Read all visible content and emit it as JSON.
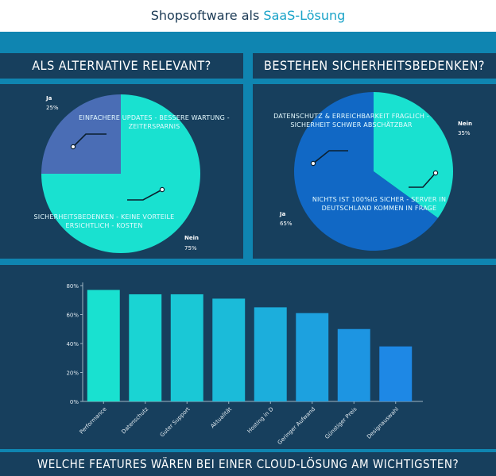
{
  "header": {
    "title_prefix": "Shopsoftware als ",
    "title_accent": "SaaS-Lösung"
  },
  "colors": {
    "background": "#173f5d",
    "frame": "#0f85b1",
    "teal": "#19e1d0",
    "slate": "#4a6db5",
    "blue": "#1168c5",
    "bar_top": "#19e1d0",
    "bar_bottom": "#1e88e5"
  },
  "chart_data": [
    {
      "type": "pie",
      "title": "ALS ALTERNATIVE RELEVANT?",
      "slices": [
        {
          "label": "Ja",
          "value": 25,
          "display": "25%",
          "color": "#4a6db5"
        },
        {
          "label": "Nein",
          "value": 75,
          "display": "75%",
          "color": "#19e1d0"
        }
      ],
      "annotations": [
        "EINFACHERE UPDATES - BESSERE WARTUNG - ZEITERSPARNIS",
        "SICHERHEITSBEDENKEN - KEINE VORTEILE ERSICHTLICH - KOSTEN"
      ]
    },
    {
      "type": "pie",
      "title": "BESTEHEN SICHERHEITSBEDENKEN?",
      "slices": [
        {
          "label": "Nein",
          "value": 35,
          "display": "35%",
          "color": "#19e1d0"
        },
        {
          "label": "Ja",
          "value": 65,
          "display": "65%",
          "color": "#1168c5"
        }
      ],
      "annotations": [
        "DATENSCHUTZ & ERREICHBARKEIT FRAGLICH - SICHERHEIT SCHWER ABSCHÄTZBAR",
        "NICHTS IST 100%IG SICHER - SERVER IN DEUTSCHLAND KOMMEN IN FRAGE"
      ]
    },
    {
      "type": "bar",
      "title": "WELCHE FEATURES WÄREN BEI EINER CLOUD-LÖSUNG AM WICHTIGSTEN?",
      "categories": [
        "Performance",
        "Datenschutz",
        "Guter Support",
        "Aktualität",
        "Hosting in D",
        "Geringer Aufwand",
        "Günstiger Preis",
        "Designauswahl"
      ],
      "values": [
        77,
        74,
        74,
        71,
        65,
        61,
        50,
        38
      ],
      "ylim": [
        0,
        80
      ],
      "yticks": [
        "0%",
        "20%",
        "40%",
        "60%",
        "80%"
      ],
      "grid": false
    }
  ]
}
